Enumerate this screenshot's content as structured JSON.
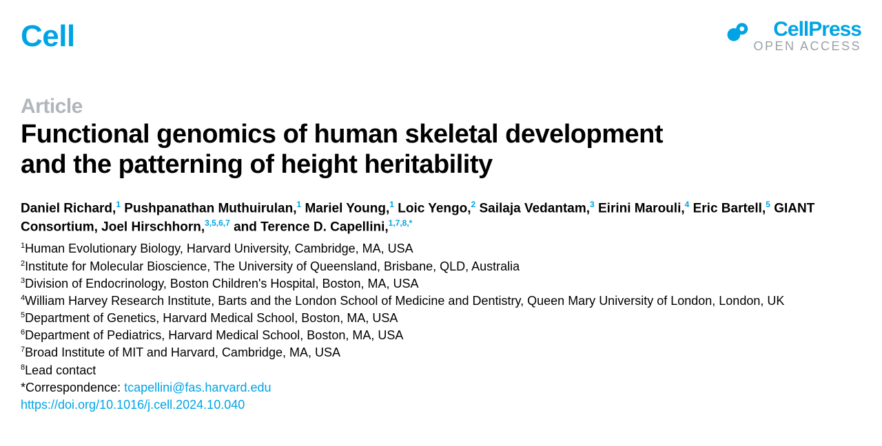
{
  "colors": {
    "brand": "#00a4e4",
    "muted": "#b0b6bc",
    "gray": "#9aa0a6",
    "text": "#000000",
    "background": "#ffffff"
  },
  "header": {
    "journal": "Cell",
    "publisher": "CellPress",
    "publisher_sub": "OPEN ACCESS"
  },
  "article_label": "Article",
  "title_line1": "Functional genomics of human skeletal development",
  "title_line2": "and the patterning of height heritability",
  "authors": [
    {
      "name": "Daniel Richard",
      "sup": "1"
    },
    {
      "name": "Pushpanathan Muthuirulan",
      "sup": "1"
    },
    {
      "name": "Mariel Young",
      "sup": "1"
    },
    {
      "name": "Loic Yengo",
      "sup": "2"
    },
    {
      "name": "Sailaja Vedantam",
      "sup": "3"
    },
    {
      "name": "Eirini Marouli",
      "sup": "4"
    },
    {
      "name": "Eric Bartell",
      "sup": "5"
    },
    {
      "name": "GIANT Consortium",
      "sup": ""
    },
    {
      "name": "Joel Hirschhorn",
      "sup": "3,5,6,7"
    },
    {
      "name": "Terence D. Capellini",
      "sup": "1,7,8,",
      "star": true
    }
  ],
  "and_label": "and",
  "affiliations": [
    {
      "n": "1",
      "text": "Human Evolutionary Biology, Harvard University, Cambridge, MA, USA"
    },
    {
      "n": "2",
      "text": "Institute for Molecular Bioscience, The University of Queensland, Brisbane, QLD, Australia"
    },
    {
      "n": "3",
      "text": "Division of Endocrinology, Boston Children's Hospital, Boston, MA, USA"
    },
    {
      "n": "4",
      "text": "William Harvey Research Institute, Barts and the London School of Medicine and Dentistry, Queen Mary University of London, London, UK"
    },
    {
      "n": "5",
      "text": "Department of Genetics, Harvard Medical School, Boston, MA, USA"
    },
    {
      "n": "6",
      "text": "Department of Pediatrics, Harvard Medical School, Boston, MA, USA"
    },
    {
      "n": "7",
      "text": "Broad Institute of MIT and Harvard, Cambridge, MA, USA"
    },
    {
      "n": "8",
      "text": "Lead contact"
    }
  ],
  "correspondence_label": "*Correspondence: ",
  "correspondence_email": "tcapellini@fas.harvard.edu",
  "doi": "https://doi.org/10.1016/j.cell.2024.10.040"
}
